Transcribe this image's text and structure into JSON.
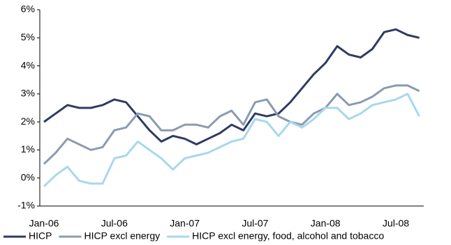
{
  "chart_data": {
    "type": "line",
    "categories": [
      "Jan-06",
      null,
      null,
      null,
      null,
      null,
      "Jul-06",
      null,
      null,
      null,
      null,
      null,
      "Jan-07",
      null,
      null,
      null,
      null,
      null,
      "Jul-07",
      null,
      null,
      null,
      null,
      null,
      "Jan-08",
      null,
      null,
      null,
      null,
      null,
      "Jul-08",
      null,
      null
    ],
    "series": [
      {
        "name": "HICP",
        "color": "#2e3b63",
        "values": [
          2.0,
          2.3,
          2.6,
          2.5,
          2.5,
          2.6,
          2.8,
          2.7,
          2.2,
          1.7,
          1.3,
          1.5,
          1.4,
          1.2,
          1.4,
          1.6,
          1.9,
          1.7,
          2.3,
          2.2,
          2.3,
          2.7,
          3.2,
          3.7,
          4.1,
          4.7,
          4.4,
          4.3,
          4.6,
          5.2,
          5.3,
          5.1,
          5.0
        ]
      },
      {
        "name": "HICP excl energy",
        "color": "#8a9bb0",
        "values": [
          0.5,
          0.9,
          1.4,
          1.2,
          1.0,
          1.1,
          1.7,
          1.8,
          2.3,
          2.2,
          1.7,
          1.7,
          1.9,
          1.9,
          1.8,
          2.2,
          2.4,
          1.9,
          2.7,
          2.8,
          2.2,
          2.0,
          1.9,
          2.3,
          2.5,
          3.0,
          2.6,
          2.7,
          2.9,
          3.2,
          3.3,
          3.3,
          3.1
        ]
      },
      {
        "name": "HICP excl energy, food, alcohol and tobacco",
        "color": "#a8d8ec",
        "values": [
          -0.3,
          0.1,
          0.4,
          -0.1,
          -0.2,
          -0.2,
          0.7,
          0.8,
          1.3,
          1.0,
          0.7,
          0.3,
          0.7,
          0.8,
          0.9,
          1.1,
          1.3,
          1.4,
          2.1,
          2.0,
          1.5,
          2.0,
          1.8,
          2.1,
          2.5,
          2.5,
          2.1,
          2.3,
          2.6,
          2.7,
          2.8,
          3.0,
          2.2
        ]
      }
    ],
    "ylim": [
      -1,
      6
    ],
    "yticks": [
      {
        "value": -1,
        "label": "-1%"
      },
      {
        "value": 0,
        "label": "0%"
      },
      {
        "value": 1,
        "label": "1%"
      },
      {
        "value": 2,
        "label": "2%"
      },
      {
        "value": 3,
        "label": "3%"
      },
      {
        "value": 4,
        "label": "4%"
      },
      {
        "value": 5,
        "label": "5%"
      },
      {
        "value": 6,
        "label": "6%"
      }
    ],
    "legend": "bottom"
  }
}
